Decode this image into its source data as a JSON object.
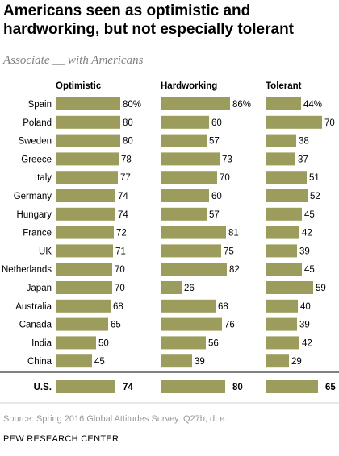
{
  "title": "Americans seen as optimistic and hardworking, but not especially tolerant",
  "subtitle": "Associate __ with Americans",
  "source": "Source: Spring 2016 Global Attitudes Survey. Q27b, d, e.",
  "org": "PEW RESEARCH CENTER",
  "colors": {
    "bar": "#9c9c5c",
    "text": "#000000",
    "muted": "#9a9a9a"
  },
  "chart_data": {
    "type": "bar",
    "orientation": "horizontal",
    "unit": "%",
    "categories": [
      "Spain",
      "Poland",
      "Sweden",
      "Greece",
      "Italy",
      "Germany",
      "Hungary",
      "France",
      "UK",
      "Netherlands",
      "Japan",
      "Australia",
      "Canada",
      "India",
      "China"
    ],
    "series": [
      {
        "name": "Optimistic",
        "values": [
          80,
          80,
          80,
          78,
          77,
          74,
          74,
          72,
          71,
          70,
          70,
          68,
          65,
          50,
          45
        ]
      },
      {
        "name": "Hardworking",
        "values": [
          86,
          60,
          57,
          73,
          70,
          60,
          57,
          81,
          75,
          82,
          26,
          68,
          76,
          56,
          39
        ]
      },
      {
        "name": "Tolerant",
        "values": [
          44,
          70,
          38,
          37,
          51,
          52,
          45,
          42,
          39,
          45,
          59,
          40,
          39,
          42,
          29
        ]
      }
    ],
    "us_row": {
      "label": "U.S.",
      "values": [
        74,
        80,
        65
      ]
    }
  }
}
